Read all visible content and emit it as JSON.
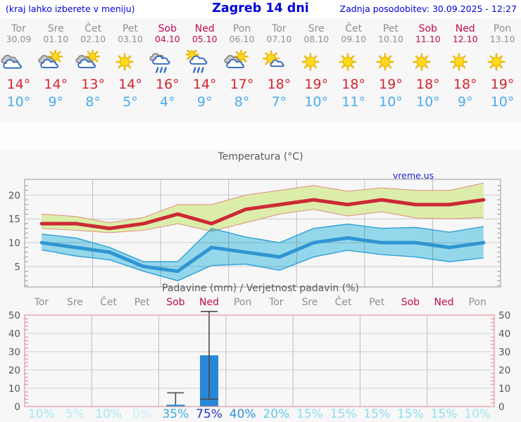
{
  "header": {
    "menu_note": "(kraj lahko izberete v meniju)",
    "title": "Zagreb 14 dni",
    "last_update": "Zadnja posodobitev: 30.09.2025 - 12:27"
  },
  "forecast": {
    "days": [
      {
        "name": "Tor",
        "date": "30.09",
        "weekend": false,
        "icon": "cloudy",
        "high": "14°",
        "low": "10°"
      },
      {
        "name": "Sre",
        "date": "01.10",
        "weekend": false,
        "icon": "partly-sunny",
        "high": "14°",
        "low": "9°"
      },
      {
        "name": "Čet",
        "date": "02.10",
        "weekend": false,
        "icon": "partly-sunny",
        "high": "13°",
        "low": "8°"
      },
      {
        "name": "Pet",
        "date": "03.10",
        "weekend": false,
        "icon": "sunny",
        "high": "14°",
        "low": "5°"
      },
      {
        "name": "Sob",
        "date": "04.10",
        "weekend": true,
        "icon": "rain",
        "high": "16°",
        "low": "4°"
      },
      {
        "name": "Ned",
        "date": "05.10",
        "weekend": true,
        "icon": "sun-rain",
        "high": "14°",
        "low": "9°"
      },
      {
        "name": "Pon",
        "date": "06.10",
        "weekend": false,
        "icon": "partly-sunny",
        "high": "17°",
        "low": "8°"
      },
      {
        "name": "Tor",
        "date": "07.10",
        "weekend": false,
        "icon": "mostly-sunny",
        "high": "18°",
        "low": "7°"
      },
      {
        "name": "Sre",
        "date": "08.10",
        "weekend": false,
        "icon": "sunny",
        "high": "19°",
        "low": "10°"
      },
      {
        "name": "Čet",
        "date": "09.10",
        "weekend": false,
        "icon": "sunny",
        "high": "18°",
        "low": "11°"
      },
      {
        "name": "Pet",
        "date": "10.10",
        "weekend": false,
        "icon": "sunny",
        "high": "19°",
        "low": "10°"
      },
      {
        "name": "Sob",
        "date": "11.10",
        "weekend": true,
        "icon": "sunny",
        "high": "18°",
        "low": "10°"
      },
      {
        "name": "Ned",
        "date": "12.10",
        "weekend": true,
        "icon": "sunny",
        "high": "18°",
        "low": "9°"
      },
      {
        "name": "Pon",
        "date": "13.10",
        "weekend": false,
        "icon": "sunny",
        "high": "19°",
        "low": "10°"
      }
    ]
  },
  "chart_data": [
    {
      "type": "line",
      "title": "Temperatura (°C)",
      "watermark": "vreme.us",
      "categories": [
        "Tor 30.09",
        "Sre 01.10",
        "Čet 02.10",
        "Pet 03.10",
        "Sob 04.10",
        "Ned 05.10",
        "Pon 06.10",
        "Tor 07.10",
        "Sre 08.10",
        "Čet 09.10",
        "Pet 10.10",
        "Sob 11.10",
        "Ned 12.10",
        "Pon 13.10"
      ],
      "ylim": [
        0.7,
        23.3
      ],
      "yticks": [
        5,
        10,
        15,
        20
      ],
      "grid": true,
      "series": [
        {
          "name": "max",
          "values": [
            14,
            14,
            13,
            14,
            16,
            14,
            17,
            18,
            19,
            18,
            19,
            18,
            18,
            19
          ],
          "color": "#cc2936"
        },
        {
          "name": "max_range_upper",
          "values": [
            16,
            15.5,
            14.2,
            15.3,
            18,
            18,
            20,
            21,
            22,
            20.8,
            21.5,
            21,
            21,
            22.5
          ],
          "color": "#e08d7a"
        },
        {
          "name": "max_range_lower",
          "values": [
            13,
            12.6,
            12.1,
            12.6,
            14,
            12.4,
            14.2,
            16,
            17,
            15.6,
            16.5,
            15.2,
            15,
            15.3
          ],
          "color": "#e08d7a"
        },
        {
          "name": "min",
          "values": [
            10,
            9,
            8,
            5,
            4,
            9,
            8,
            7,
            10,
            11,
            10,
            10,
            9,
            10
          ],
          "color": "#3096d2"
        },
        {
          "name": "min_range_upper",
          "values": [
            11.8,
            11,
            9,
            6,
            6,
            13,
            11.2,
            10,
            13,
            13.9,
            13,
            13.2,
            12.2,
            13.4
          ],
          "color": "#2ea0d8"
        },
        {
          "name": "min_range_lower",
          "values": [
            8.5,
            7.2,
            6.4,
            4,
            2,
            5.2,
            5.5,
            4.2,
            7,
            8.4,
            7.5,
            7,
            6,
            6.8
          ],
          "color": "#2ea0d8"
        }
      ],
      "band_colors": {
        "max": "#dcedaa",
        "min": "#9adef2"
      }
    },
    {
      "type": "bar",
      "title": "Padavine (mm) / Verjetnost padavin (%)",
      "categories": [
        "Tor",
        "Sre",
        "Čet",
        "Pet",
        "Sob",
        "Ned",
        "Pon",
        "Tor",
        "Sre",
        "Čet",
        "Pet",
        "Sob",
        "Ned",
        "Pon"
      ],
      "weekend_flags": [
        false,
        false,
        false,
        false,
        true,
        true,
        false,
        false,
        false,
        false,
        false,
        true,
        true,
        false
      ],
      "ylim": [
        0,
        50
      ],
      "yticks": [
        0,
        10,
        20,
        30,
        40,
        50
      ],
      "grid": true,
      "values": [
        0,
        0,
        0,
        0,
        1,
        28,
        0,
        0,
        0,
        0,
        0,
        0,
        0,
        0
      ],
      "whiskers": [
        {
          "day": 4,
          "low": null,
          "high": 7.5
        },
        {
          "day": 5,
          "low": 4,
          "high": 52
        }
      ],
      "bar_color": "#2787d8",
      "probabilities": [
        {
          "label": "10%",
          "color": "#a3e7f4"
        },
        {
          "label": "5%",
          "color": "#b7edf7"
        },
        {
          "label": "10%",
          "color": "#a3e7f4"
        },
        {
          "label": "0%",
          "color": "#c6f1f9"
        },
        {
          "label": "35%",
          "color": "#3bafe3"
        },
        {
          "label": "75%",
          "color": "#2236c8"
        },
        {
          "label": "40%",
          "color": "#2f93da"
        },
        {
          "label": "20%",
          "color": "#5fcbeb"
        },
        {
          "label": "15%",
          "color": "#8adef1"
        },
        {
          "label": "15%",
          "color": "#8adef1"
        },
        {
          "label": "15%",
          "color": "#8adef1"
        },
        {
          "label": "15%",
          "color": "#8adef1"
        },
        {
          "label": "15%",
          "color": "#8adef1"
        },
        {
          "label": "10%",
          "color": "#a3e7f4"
        }
      ]
    }
  ]
}
